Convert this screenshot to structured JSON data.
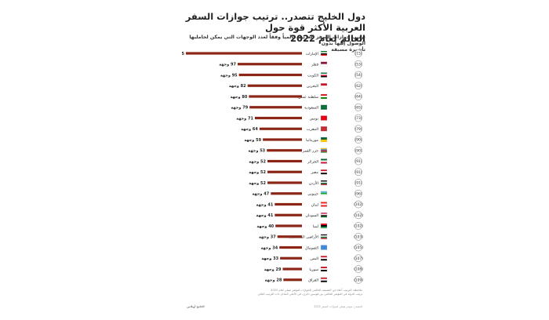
{
  "header": {
    "title_line1": "دول الخليج تتصدر.. ترتيب جوازات السفر العربية الأكثر قوة حول",
    "title_line2": "العالم لعام 2022",
    "subtitle_line1": "ترتيب جوازات السفر العربية عالمياً وفقاً لعدد الوجهات التي يمكن لحامليها الوصول إليها بدون",
    "subtitle_line2": "تأشيرة مسبقة"
  },
  "colors": {
    "bar": "#8b2616",
    "rank_border": "#9a9a9a",
    "text": "#222222"
  },
  "value_suffix": "وجهة",
  "chart_data": {
    "type": "bar",
    "orientation": "horizontal",
    "title": "دول الخليج تتصدر.. ترتيب جوازات السفر العربية الأكثر قوة حول العالم لعام 2022",
    "subtitle": "ترتيب جوازات السفر العربية عالمياً وفقاً لعدد الوجهات التي يمكن لحامليها الوصول إليها بدون تأشيرة مسبقة",
    "categories": [
      "الإمارات",
      "قطر",
      "الكويت",
      "البحرين",
      "سلطنة عمان",
      "السعودية",
      "تونس",
      "المغرب",
      "موريتانيا",
      "جزر القمر",
      "الجزائر",
      "مصر",
      "الأردن",
      "جيبوتي",
      "لبنان",
      "السودان",
      "ليبيا",
      "الأراضي الفلسطينية",
      "الصومال",
      "اليمن",
      "سوريا",
      "العراق"
    ],
    "ranks": [
      "15",
      "53",
      "54",
      "62",
      "64",
      "65",
      "73",
      "79",
      "90",
      "90",
      "91",
      "91",
      "91",
      "96",
      "102",
      "102",
      "102",
      "103",
      "105",
      "107",
      "108",
      "109"
    ],
    "values": [
      175,
      97,
      95,
      82,
      80,
      79,
      71,
      64,
      59,
      53,
      52,
      52,
      52,
      47,
      41,
      41,
      40,
      37,
      34,
      33,
      29,
      28
    ],
    "value_labels": [
      "175 وجهة",
      "97 وجهة",
      "95 وجهة",
      "82 وجهة",
      "80 وجهة",
      "79 وجهة",
      "71 وجهة",
      "64 وجهة",
      "59 وجهة",
      "53 وجهة",
      "52 وجهة",
      "52 وجهة",
      "52 وجهة",
      "47 وجهة",
      "41 وجهة",
      "41 وجهة",
      "40 وجهة",
      "37 وجهة",
      "34 وجهة",
      "33 وجهة",
      "29 وجهة",
      "28 وجهة"
    ],
    "flags": [
      "uae",
      "qatar",
      "kuwait",
      "bahrain",
      "oman",
      "saudi",
      "tunisia",
      "morocco",
      "mauritania",
      "comoros",
      "algeria",
      "egypt",
      "jordan",
      "djibouti",
      "lebanon",
      "sudan",
      "libya",
      "palestine",
      "somalia",
      "yemen",
      "syria",
      "iraq"
    ],
    "xlim": [
      0,
      175
    ],
    "grid": false,
    "legend": "none"
  },
  "footnote_line1": "ملاحظة: الترتيب أعلاه من التصنيف العالمي للجوازات لمؤشر هينلي لعام 2022",
  "footnote_line2": "ترتيب الدولة في المؤشر العالمي بين قوسين دائري، في الأعلى البلدان ذات الترتيب العالي",
  "footer_source": "المصدر: مؤشر هينلي لجوازات السفر 2022",
  "footer_brand": "الخليج أونلاين"
}
